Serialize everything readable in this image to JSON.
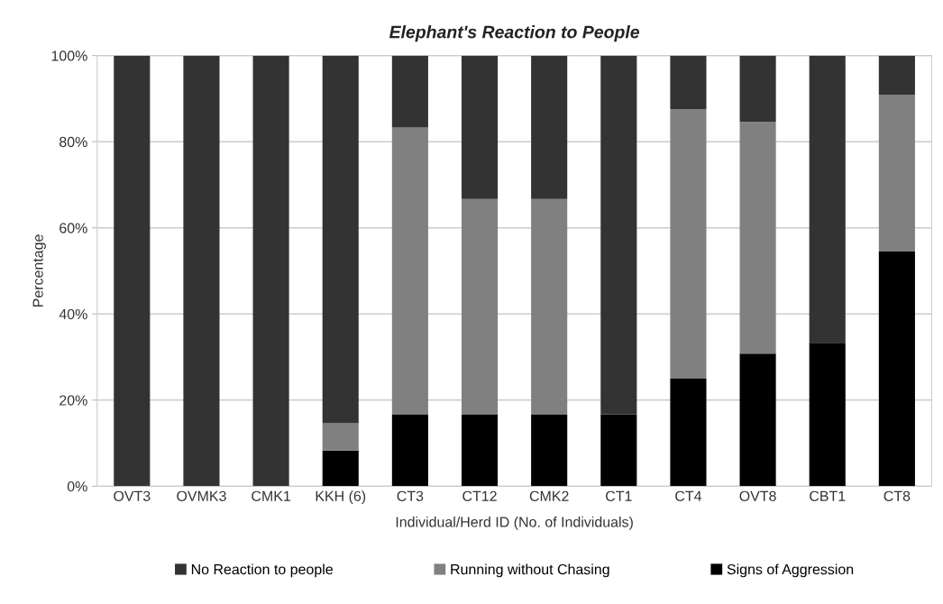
{
  "chart_data": {
    "type": "bar",
    "title": "Elephant's Reaction to People",
    "xlabel": "Individual/Herd ID (No. of Individuals)",
    "ylabel": "Percentage",
    "categories": [
      "OVT3",
      "OVMK3",
      "CMK1",
      "KKH (6)",
      "CT3",
      "CT12",
      "CMK2",
      "CT1",
      "CT4",
      "OVT8",
      "CBT1",
      "CT8"
    ],
    "stacked": true,
    "series": [
      {
        "name": "Signs of Aggression",
        "color": "#000000",
        "values": [
          0,
          0,
          0,
          8.3,
          16.7,
          16.7,
          16.7,
          16.7,
          25,
          30.8,
          33.3,
          54.5
        ]
      },
      {
        "name": "Running without Chasing",
        "color": "#808080",
        "values": [
          0,
          0,
          0,
          6.3,
          66.6,
          50,
          50,
          0,
          62.5,
          53.8,
          0,
          36.4
        ]
      },
      {
        "name": "No Reaction to people",
        "color": "#333333",
        "values": [
          100,
          100,
          100,
          85.4,
          16.7,
          33.3,
          33.3,
          83.3,
          12.5,
          15.4,
          66.7,
          9.1
        ]
      }
    ],
    "ylim": [
      0,
      100
    ],
    "yticks": [
      {
        "value": 0,
        "label": "0%"
      },
      {
        "value": 20,
        "label": "20%"
      },
      {
        "value": 40,
        "label": "40%"
      },
      {
        "value": 60,
        "label": "60%"
      },
      {
        "value": 80,
        "label": "80%"
      },
      {
        "value": 100,
        "label": "100%"
      }
    ],
    "grid": "y",
    "legend": "bottom"
  }
}
